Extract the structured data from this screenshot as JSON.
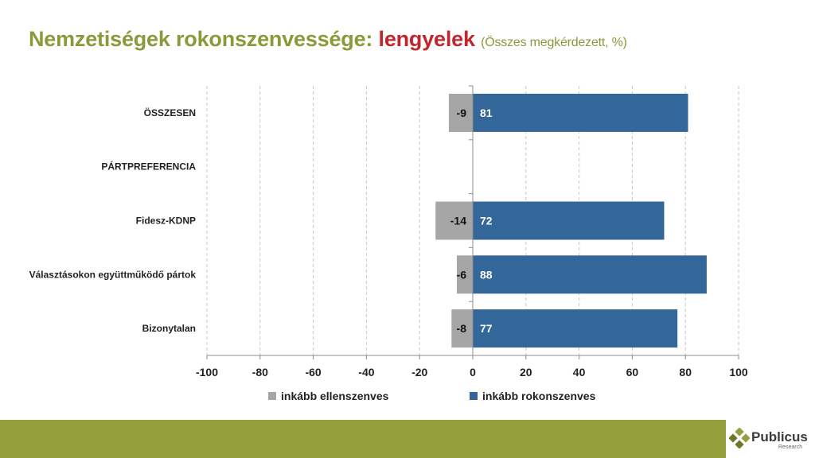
{
  "header": {
    "title_main": "Nemzetiségek rokonszenvessége:",
    "title_highlight": "lengyelek",
    "title_sub": "(Összes megkérdezett, %)"
  },
  "colors": {
    "title": "#8a9a3a",
    "highlight": "#c0262c",
    "negative": "#a6a6a6",
    "positive": "#336699",
    "footer": "#95a03c"
  },
  "chart_data": {
    "type": "bar",
    "orientation": "horizontal",
    "categories": [
      "ÖSSZESEN",
      "PÁRTPREFERENCIA",
      "Fidesz-KDNP",
      "Választásokon együttműködő pártok",
      "Bizonytalan"
    ],
    "series": [
      {
        "name": "inkább ellenszenves",
        "values": [
          -9,
          null,
          -14,
          -6,
          -8
        ]
      },
      {
        "name": "inkább rokonszenves",
        "values": [
          81,
          null,
          72,
          88,
          77
        ]
      }
    ],
    "xlim": [
      -100,
      100
    ],
    "xticks": [
      -100,
      -80,
      -60,
      -40,
      -20,
      0,
      20,
      40,
      60,
      80,
      100
    ],
    "grid": true,
    "legend": "bottom"
  },
  "footer": {
    "brand": "Publicus",
    "brand_sub": "Research"
  }
}
